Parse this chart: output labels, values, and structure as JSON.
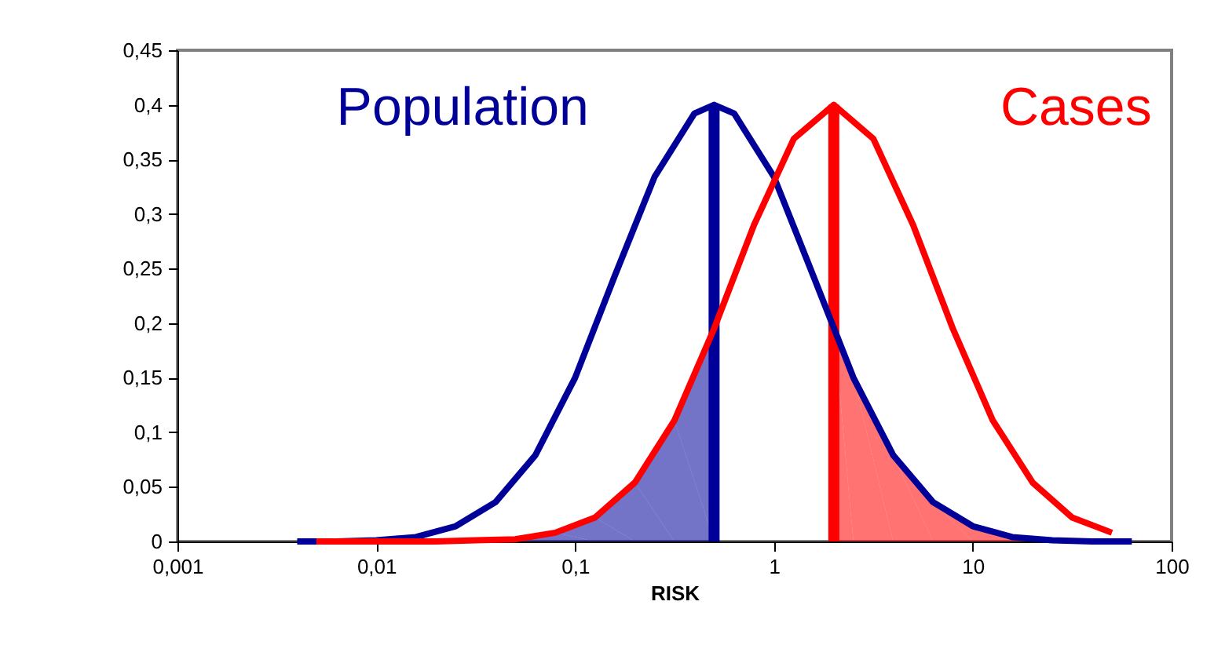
{
  "chart_data": {
    "type": "line",
    "xlabel": "RISK",
    "log": "x",
    "grid": false,
    "marker": "none",
    "line_style": "solid",
    "xlim": [
      0.001,
      100
    ],
    "xticks": [
      {
        "value": 0.001,
        "label": "0,001"
      },
      {
        "value": 0.01,
        "label": "0,01"
      },
      {
        "value": 0.1,
        "label": "0,1"
      },
      1,
      10,
      100
    ],
    "ylim": [
      0,
      0.45
    ],
    "yticks": [
      0,
      {
        "value": 0.05,
        "label": "0,05"
      },
      {
        "value": 0.1,
        "label": "0,1"
      },
      {
        "value": 0.15,
        "label": "0,15"
      },
      {
        "value": 0.2,
        "label": "0,2"
      },
      {
        "value": 0.25,
        "label": "0,25"
      },
      {
        "value": 0.3,
        "label": "0,3"
      },
      {
        "value": 0.35,
        "label": "0,35"
      },
      {
        "value": 0.4,
        "label": "0,4"
      },
      {
        "value": 0.45,
        "label": "0,45"
      }
    ],
    "series": [
      {
        "type": "area",
        "color": "#000099",
        "x": [
          0.05,
          0.0794,
          0.126,
          0.2,
          0.316,
          0.5
        ],
        "values": [
          0.002,
          0.008,
          0.022,
          0.054,
          0.111,
          0.195
        ]
      },
      {
        "type": "area",
        "color": "#ff0000",
        "x": [
          2,
          2.51,
          3.98,
          6.31,
          10,
          15.8,
          25.1
        ],
        "values": [
          0.195,
          0.15,
          0.079,
          0.036,
          0.014,
          0.004,
          0.001
        ]
      },
      {
        "name": "Population",
        "color": "#000099",
        "x": [
          0.004,
          0.0063,
          0.01,
          0.0158,
          0.0251,
          0.0398,
          0.0631,
          0.1,
          0.158,
          0.251,
          0.398,
          0.5,
          0.631,
          1,
          1.58,
          2.51,
          3.98,
          6.31,
          10,
          15.8,
          25.1,
          39.8,
          63.1
        ],
        "values": [
          0,
          0,
          0.001,
          0.004,
          0.014,
          0.036,
          0.079,
          0.15,
          0.243,
          0.334,
          0.392,
          0.4,
          0.392,
          0.334,
          0.243,
          0.15,
          0.079,
          0.036,
          0.014,
          0.004,
          0.001,
          0,
          0
        ]
      },
      {
        "name": "Cases",
        "color": "#ff0000",
        "x": [
          0.005,
          0.0079,
          0.0126,
          0.02,
          0.0316,
          0.05,
          0.0794,
          0.126,
          0.2,
          0.316,
          0.5,
          0.794,
          1.26,
          2,
          3.16,
          5.01,
          7.94,
          12.6,
          20,
          31.6,
          50.1
        ],
        "values": [
          0,
          0,
          0,
          0,
          0.001,
          0.002,
          0.008,
          0.022,
          0.054,
          0.111,
          0.195,
          0.29,
          0.369,
          0.4,
          0.369,
          0.29,
          0.195,
          0.111,
          0.054,
          0.022,
          0.008
        ]
      },
      {
        "type": "bar",
        "color": "#000099",
        "x": [
          0.5
        ],
        "values": [
          0.4
        ]
      },
      {
        "type": "bar",
        "color": "#ff0000",
        "x": [
          2
        ],
        "values": [
          0.4
        ]
      }
    ]
  }
}
